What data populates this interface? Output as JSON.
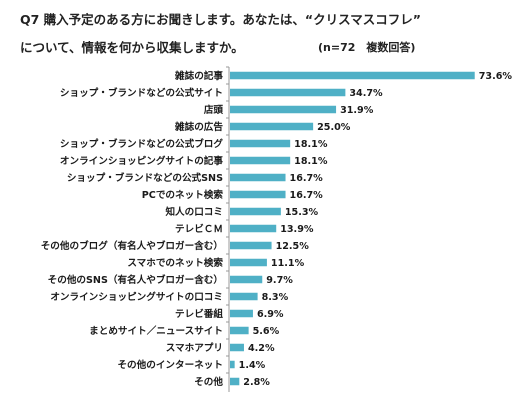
{
  "title_line1": "Q7 購入予定のある方にお聞きします。あなたは、“クリスマスコフレ”",
  "title_line2": "について、情報を何から収集しますか。",
  "note": "(n=72　複数回答)",
  "colors": {
    "bar": "#4fb0c6",
    "axis": "#999999"
  },
  "chart_data": {
    "type": "bar",
    "orientation": "horizontal",
    "categories": [
      "雑誌の記事",
      "ショップ・ブランドなどの公式サイト",
      "店頭",
      "雑誌の広告",
      "ショップ・ブランドなどの公式ブログ",
      "オンラインショッピングサイトの記事",
      "ショップ・ブランドなどの公式SNS",
      "PCでのネット検索",
      "知人の口コミ",
      "テレビＣＭ",
      "その他のブログ（有名人やブロガー含む）",
      "スマホでのネット検索",
      "その他のSNS（有名人やブロガー含む）",
      "オンラインショッピングサイトの口コミ",
      "テレビ番組",
      "まとめサイト／ニュースサイト",
      "スマホアプリ",
      "その他のインターネット",
      "その他"
    ],
    "values": [
      73.6,
      34.7,
      31.9,
      25.0,
      18.1,
      18.1,
      16.7,
      16.7,
      15.3,
      13.9,
      12.5,
      11.1,
      9.7,
      8.3,
      6.9,
      5.6,
      4.2,
      1.4,
      2.8
    ],
    "value_labels": [
      "73.6%",
      "34.7%",
      "31.9%",
      "25.0%",
      "18.1%",
      "18.1%",
      "16.7%",
      "16.7%",
      "15.3%",
      "13.9%",
      "12.5%",
      "11.1%",
      "9.7%",
      "8.3%",
      "6.9%",
      "5.6%",
      "4.2%",
      "1.4%",
      "2.8%"
    ],
    "xlim": [
      0,
      80
    ],
    "unit": "%",
    "grid": false,
    "legend": "none"
  }
}
